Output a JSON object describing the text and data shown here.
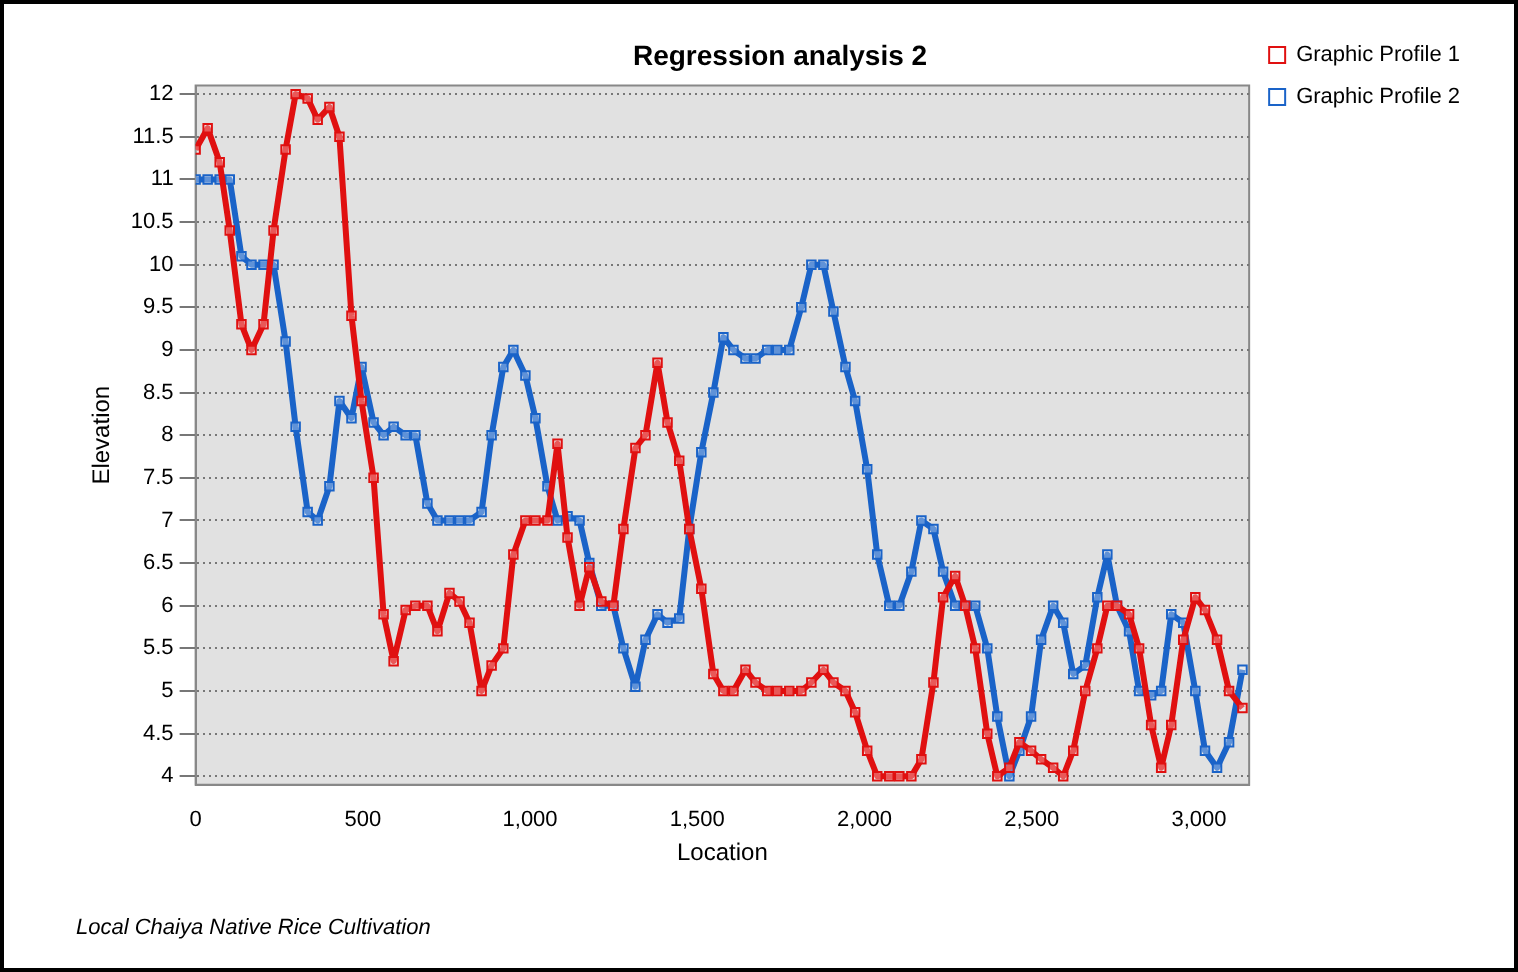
{
  "chart_data": {
    "type": "line",
    "title": "Regression analysis 2",
    "xlabel": "Location",
    "ylabel": "Elevation",
    "x": [
      0,
      36,
      72,
      102,
      137,
      167,
      203,
      233,
      269,
      299,
      335,
      365,
      400,
      430,
      466,
      496,
      532,
      562,
      592,
      628,
      657,
      693,
      723,
      759,
      789,
      819,
      855,
      885,
      920,
      950,
      986,
      1016,
      1052,
      1082,
      1112,
      1148,
      1177,
      1213,
      1249,
      1279,
      1315,
      1345,
      1381,
      1411,
      1446,
      1476,
      1512,
      1548,
      1578,
      1608,
      1644,
      1674,
      1709,
      1739,
      1775,
      1811,
      1841,
      1877,
      1907,
      1943,
      1972,
      2008,
      2038,
      2074,
      2104,
      2140,
      2170,
      2206,
      2235,
      2271,
      2301,
      2331,
      2367,
      2397,
      2433,
      2463,
      2498,
      2528,
      2564,
      2594,
      2624,
      2660,
      2696,
      2726,
      2755,
      2791,
      2821,
      2857,
      2887,
      2917,
      2953,
      2989,
      3018,
      3054,
      3090,
      3130
    ],
    "series": [
      {
        "name": "Graphic Profile 1",
        "color": "#e01010",
        "values": [
          11.35,
          11.6,
          11.2,
          10.4,
          9.3,
          9.0,
          9.3,
          10.4,
          11.35,
          12.0,
          11.95,
          11.7,
          11.85,
          11.5,
          9.4,
          8.4,
          7.5,
          5.9,
          5.35,
          5.95,
          6.0,
          6.0,
          5.7,
          6.15,
          6.05,
          5.8,
          5.0,
          5.3,
          5.5,
          6.6,
          7.0,
          7.0,
          7.0,
          7.9,
          6.8,
          6.0,
          6.45,
          6.05,
          6.0,
          6.9,
          7.85,
          8.0,
          8.85,
          8.15,
          7.7,
          6.9,
          6.2,
          5.2,
          5.0,
          5.0,
          5.25,
          5.1,
          5.0,
          5.0,
          5.0,
          5.0,
          5.1,
          5.25,
          5.1,
          5.0,
          4.75,
          4.3,
          4.0,
          4.0,
          4.0,
          4.0,
          4.2,
          5.1,
          6.1,
          6.35,
          6.0,
          5.5,
          4.5,
          4.0,
          4.1,
          4.4,
          4.3,
          4.2,
          4.1,
          4.0,
          4.3,
          5.0,
          5.5,
          6.0,
          6.0,
          5.9,
          5.5,
          4.6,
          4.1,
          4.6,
          5.6,
          6.1,
          5.95,
          5.6,
          5.0,
          4.8
        ]
      },
      {
        "name": "Graphic Profile 2",
        "color": "#1a63c8",
        "values": [
          11.0,
          11.0,
          11.0,
          11.0,
          10.1,
          10.0,
          10.0,
          10.0,
          9.1,
          8.1,
          7.1,
          7.0,
          7.4,
          8.4,
          8.2,
          8.8,
          8.15,
          8.0,
          8.1,
          8.0,
          8.0,
          7.2,
          7.0,
          7.0,
          7.0,
          7.0,
          7.1,
          8.0,
          8.8,
          9.0,
          8.7,
          8.2,
          7.4,
          7.0,
          7.05,
          7.0,
          6.5,
          6.0,
          6.0,
          5.5,
          5.05,
          5.6,
          5.9,
          5.8,
          5.85,
          6.9,
          7.8,
          8.5,
          9.15,
          9.0,
          8.9,
          8.9,
          9.0,
          9.0,
          9.0,
          9.5,
          10.0,
          10.0,
          9.45,
          8.8,
          8.4,
          7.6,
          6.6,
          6.0,
          6.0,
          6.4,
          7.0,
          6.9,
          6.4,
          6.0,
          6.0,
          6.0,
          5.5,
          4.7,
          4.0,
          4.3,
          4.7,
          5.6,
          6.0,
          5.8,
          5.2,
          5.3,
          6.1,
          6.6,
          6.0,
          5.7,
          5.0,
          4.95,
          5.0,
          5.9,
          5.8,
          5.0,
          4.3,
          4.1,
          4.4,
          5.25
        ]
      }
    ],
    "xlim": [
      0,
      3150
    ],
    "ylim": [
      3.9,
      12.1
    ],
    "xticks": [
      0,
      500,
      {
        "value": 1000,
        "label": "1,000"
      },
      {
        "value": 1500,
        "label": "1,500"
      },
      {
        "value": 2000,
        "label": "2,000"
      },
      {
        "value": 2500,
        "label": "2,500"
      },
      {
        "value": 3000,
        "label": "3,000"
      }
    ],
    "yticks": [
      4,
      4.5,
      5,
      5.5,
      6,
      6.5,
      7,
      7.5,
      8,
      8.5,
      9,
      9.5,
      10,
      10.5,
      11,
      11.5,
      12
    ],
    "grid": "y",
    "legend": "top right",
    "marker": "square",
    "line_style": "solid",
    "annotations": [
      "Local Chaiya Native Rice Cultivation"
    ]
  }
}
